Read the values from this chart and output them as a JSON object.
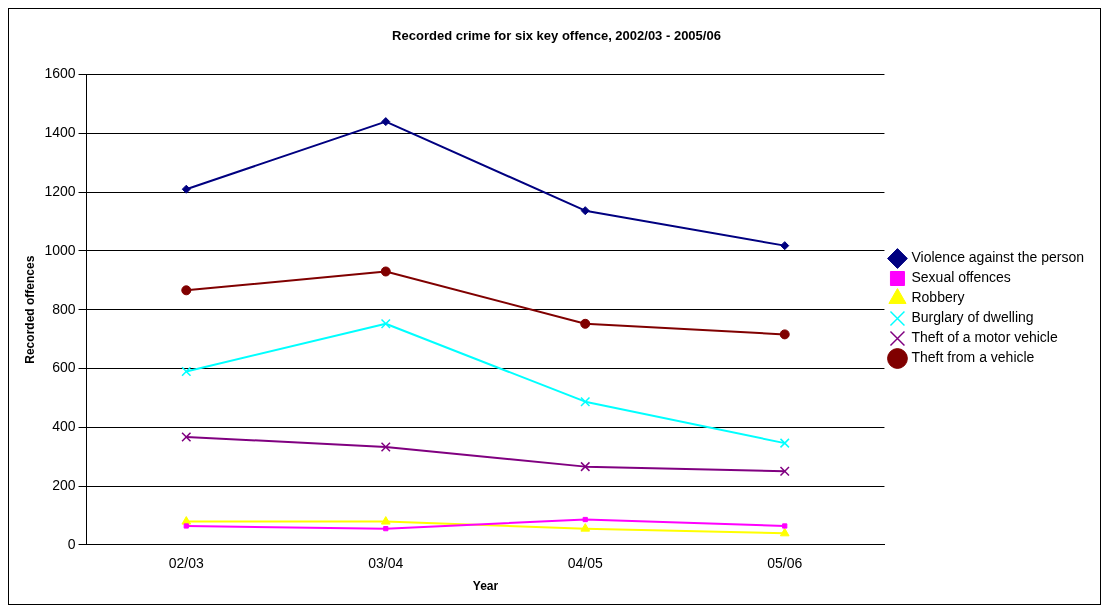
{
  "chart_data": {
    "type": "line",
    "title": "Recorded crime for six key offence, 2002/03 - 2005/06",
    "xlabel": "Year",
    "ylabel": "Recorded offences",
    "categories": [
      "02/03",
      "03/04",
      "04/05",
      "05/06"
    ],
    "ylim": [
      0,
      1600
    ],
    "yticks": [
      0,
      200,
      400,
      600,
      800,
      1000,
      1200,
      1400,
      1600
    ],
    "grid": "y",
    "legend": "right",
    "series": [
      {
        "name": "Violence against the person",
        "color": "#000080",
        "marker": "diamond",
        "values": [
          1210,
          1440,
          1137,
          1018
        ]
      },
      {
        "name": "Sexual offences",
        "color": "#ff00ff",
        "marker": "square",
        "values": [
          64,
          55,
          86,
          64
        ]
      },
      {
        "name": "Robbery",
        "color": "#ffff00",
        "marker": "triangle",
        "values": [
          79,
          79,
          55,
          39
        ]
      },
      {
        "name": "Burglary of dwelling",
        "color": "#00ffff",
        "marker": "cross",
        "values": [
          590,
          752,
          487,
          346
        ]
      },
      {
        "name": "Theft of a motor vehicle",
        "color": "#800080",
        "marker": "cross",
        "values": [
          367,
          333,
          266,
          250
        ]
      },
      {
        "name": "Theft from a vehicle",
        "color": "#800000",
        "marker": "circle",
        "values": [
          866,
          930,
          752,
          716
        ]
      }
    ]
  }
}
